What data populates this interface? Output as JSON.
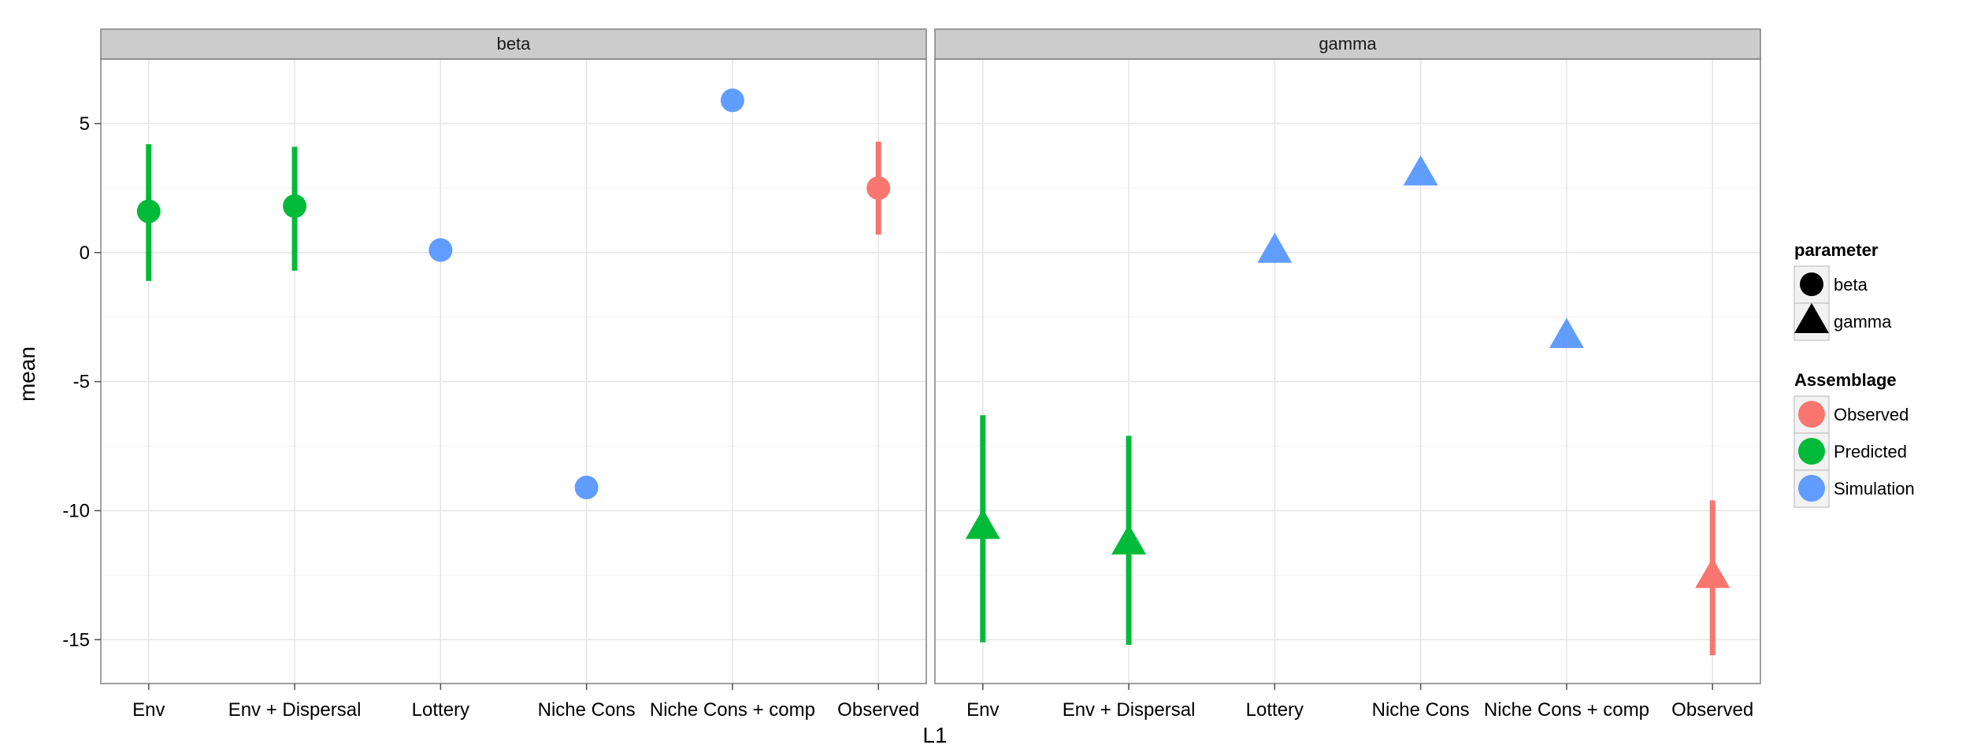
{
  "chart_data": {
    "type": "scatter",
    "subtype": "faceted point-range",
    "facet_variable": "parameter",
    "xlabel": "L1",
    "ylabel": "mean",
    "ylim": [
      -16.7,
      7.5
    ],
    "yticks": [
      -15,
      -10,
      -5,
      0,
      5
    ],
    "ytick_labels": [
      "-15",
      "-10",
      "-5",
      "0",
      "5"
    ],
    "categories": [
      "Env",
      "Env + Dispersal",
      "Lottery",
      "Niche Cons",
      "Niche Cons + comp",
      "Observed"
    ],
    "grid": true,
    "facets": [
      {
        "name": "beta",
        "shape": "circle",
        "points": [
          {
            "category": "Env",
            "mean": 1.6,
            "lower": -1.1,
            "upper": 4.2,
            "assemblage": "Predicted"
          },
          {
            "category": "Env + Dispersal",
            "mean": 1.8,
            "lower": -0.7,
            "upper": 4.1,
            "assemblage": "Predicted"
          },
          {
            "category": "Lottery",
            "mean": 0.1,
            "lower": null,
            "upper": null,
            "assemblage": "Simulation"
          },
          {
            "category": "Niche Cons",
            "mean": -9.1,
            "lower": null,
            "upper": null,
            "assemblage": "Simulation"
          },
          {
            "category": "Niche Cons + comp",
            "mean": 5.9,
            "lower": null,
            "upper": null,
            "assemblage": "Simulation"
          },
          {
            "category": "Observed",
            "mean": 2.5,
            "lower": 0.7,
            "upper": 4.3,
            "assemblage": "Observed"
          }
        ]
      },
      {
        "name": "gamma",
        "shape": "triangle",
        "points": [
          {
            "category": "Env",
            "mean": -10.7,
            "lower": -15.1,
            "upper": -6.3,
            "assemblage": "Predicted"
          },
          {
            "category": "Env + Dispersal",
            "mean": -11.3,
            "lower": -15.2,
            "upper": -7.1,
            "assemblage": "Predicted"
          },
          {
            "category": "Lottery",
            "mean": 0.0,
            "lower": null,
            "upper": null,
            "assemblage": "Simulation"
          },
          {
            "category": "Niche Cons",
            "mean": 3.0,
            "lower": null,
            "upper": null,
            "assemblage": "Simulation"
          },
          {
            "category": "Niche Cons + comp",
            "mean": -3.3,
            "lower": null,
            "upper": null,
            "assemblage": "Simulation"
          },
          {
            "category": "Observed",
            "mean": -12.6,
            "lower": -15.6,
            "upper": -9.6,
            "assemblage": "Observed"
          }
        ]
      }
    ],
    "legends": [
      {
        "title": "parameter",
        "entries": [
          {
            "label": "beta",
            "shape": "circle"
          },
          {
            "label": "gamma",
            "shape": "triangle"
          }
        ]
      },
      {
        "title": "Assemblage",
        "entries": [
          {
            "label": "Observed",
            "color": "#F8766D"
          },
          {
            "label": "Predicted",
            "color": "#00BA38"
          },
          {
            "label": "Simulation",
            "color": "#619CFF"
          }
        ]
      }
    ],
    "legend_position": "right"
  }
}
